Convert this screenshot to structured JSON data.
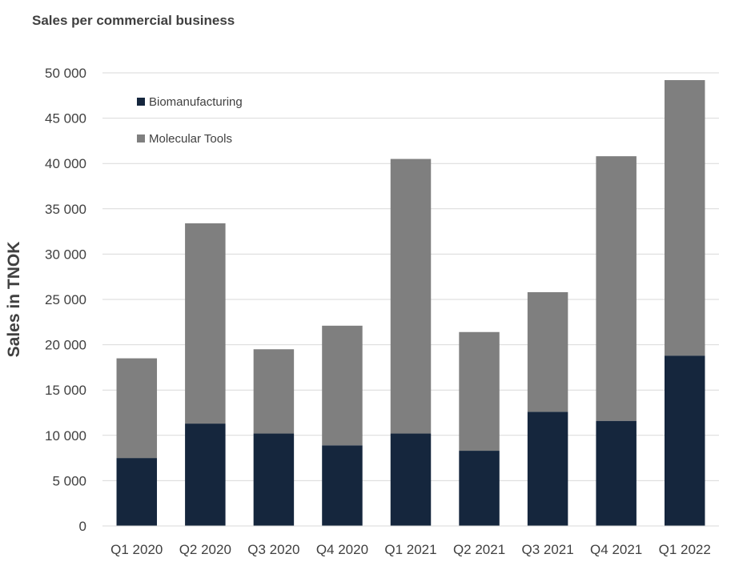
{
  "chart_data": {
    "type": "bar",
    "stacked": true,
    "title": "Sales per commercial business",
    "xlabel": "",
    "ylabel": "Sales in TNOK",
    "ylim": [
      0,
      50000
    ],
    "y_ticks": [
      0,
      5000,
      10000,
      15000,
      20000,
      25000,
      30000,
      35000,
      40000,
      45000,
      50000
    ],
    "y_tick_labels": [
      "0",
      "5 000",
      "10 000",
      "15 000",
      "20 000",
      "25 000",
      "30 000",
      "35 000",
      "40 000",
      "45 000",
      "50 000"
    ],
    "grid": true,
    "legend_position": "top-left",
    "categories": [
      "Q1 2020",
      "Q2 2020",
      "Q3 2020",
      "Q4 2020",
      "Q1 2021",
      "Q2 2021",
      "Q3 2021",
      "Q4 2021",
      "Q1 2022"
    ],
    "series": [
      {
        "name": "Biomanufacturing",
        "color": "#15263d",
        "values": [
          7500,
          11300,
          10200,
          8900,
          10200,
          8300,
          12600,
          11600,
          18800
        ]
      },
      {
        "name": "Molecular Tools",
        "color": "#7f7f7f",
        "values": [
          11000,
          22100,
          9300,
          13200,
          30300,
          13100,
          13200,
          29200,
          30400
        ]
      }
    ]
  }
}
